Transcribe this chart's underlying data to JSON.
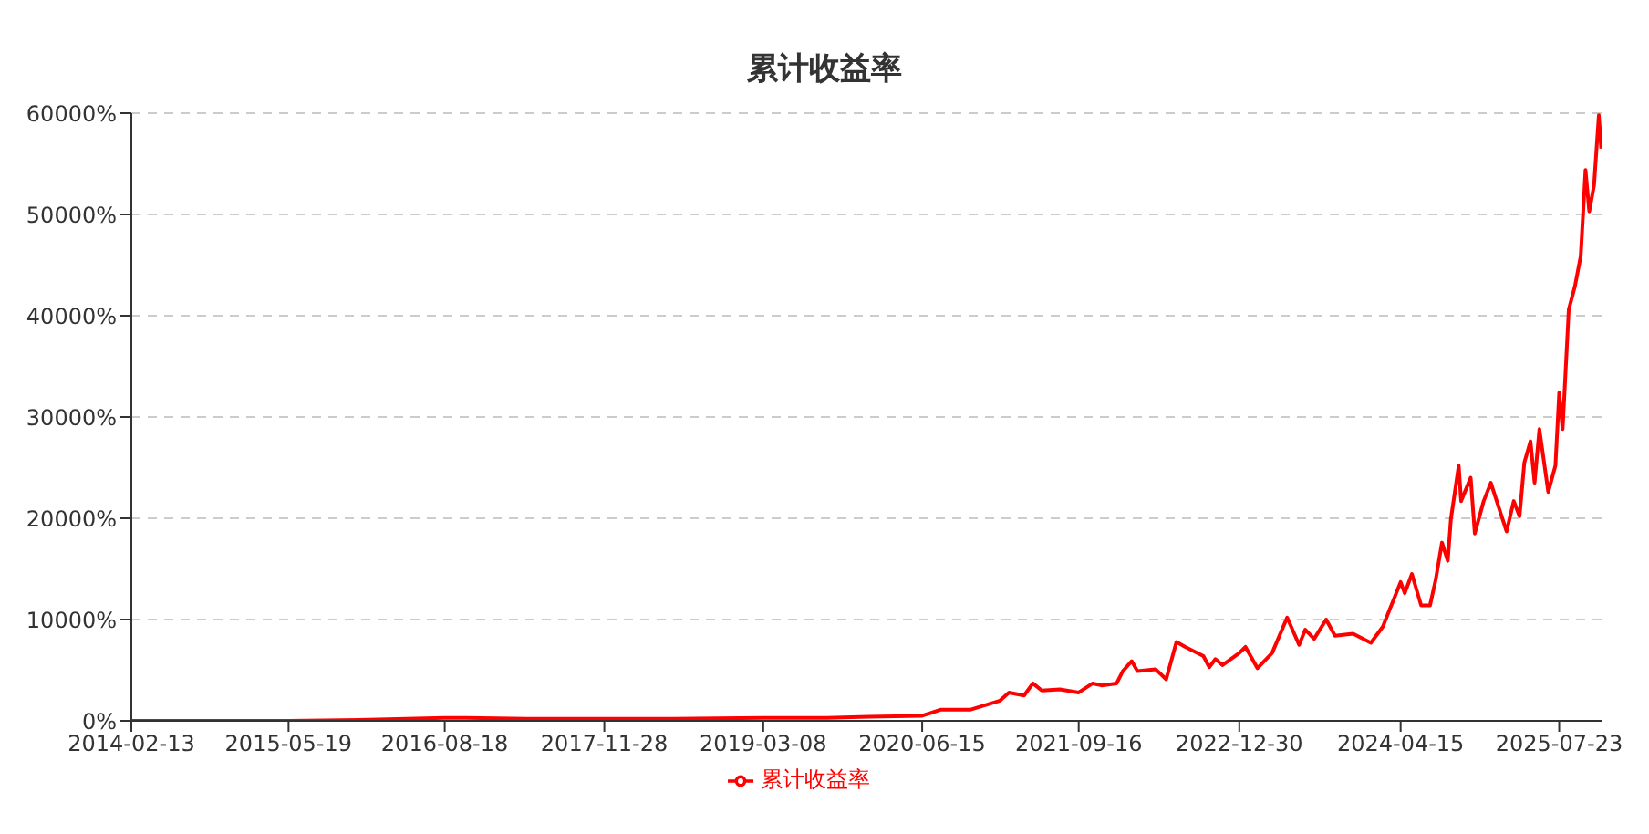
{
  "chart_data": {
    "type": "line",
    "title": "累计收益率",
    "x": [
      "2014-02-13",
      "2014-08-15",
      "2015-05-19",
      "2015-12-10",
      "2016-08-18",
      "2016-10-20",
      "2017-04-15",
      "2017-11-28",
      "2018-06-15",
      "2019-03-08",
      "2019-09-10",
      "2020-01-10",
      "2020-06-15",
      "2020-08-07",
      "2020-11-02",
      "2021-01-29",
      "2021-02-24",
      "2021-04-09",
      "2021-05-05",
      "2021-05-31",
      "2021-07-23",
      "2021-09-16",
      "2021-10-27",
      "2021-11-22",
      "2022-01-05",
      "2022-01-23",
      "2022-02-18",
      "2022-03-07",
      "2022-04-29",
      "2022-05-30",
      "2022-06-29",
      "2022-07-25",
      "2022-09-16",
      "2022-10-03",
      "2022-10-21",
      "2022-11-11",
      "2022-12-30",
      "2023-01-17",
      "2023-02-21",
      "2023-04-05",
      "2023-05-19",
      "2023-06-23",
      "2023-07-11",
      "2023-08-06",
      "2023-09-10",
      "2023-10-06",
      "2023-11-28",
      "2024-01-19",
      "2024-02-23",
      "2024-04-15",
      "2024-04-27",
      "2024-05-18",
      "2024-06-14",
      "2024-07-10",
      "2024-07-27",
      "2024-08-14",
      "2024-08-31",
      "2024-09-09",
      "2024-10-02",
      "2024-10-09",
      "2024-11-06",
      "2024-11-18",
      "2024-12-14",
      "2025-01-04",
      "2025-01-27",
      "2025-02-19",
      "2025-03-12",
      "2025-03-29",
      "2025-04-12",
      "2025-04-30",
      "2025-05-12",
      "2025-05-26",
      "2025-06-21",
      "2025-07-12",
      "2025-07-23",
      "2025-08-02",
      "2025-08-20",
      "2025-09-07",
      "2025-09-24",
      "2025-10-08",
      "2025-10-19",
      "2025-11-02",
      "2025-11-16",
      "2025-11-23"
    ],
    "series": [
      {
        "name": "累计收益率",
        "color": "#ff0000",
        "values": [
          0,
          0,
          0,
          100,
          300,
          300,
          200,
          200,
          200,
          300,
          300,
          400,
          500,
          1100,
          1100,
          2000,
          2800,
          2500,
          3700,
          3000,
          3100,
          2800,
          3700,
          3500,
          3700,
          4900,
          5900,
          4900,
          5100,
          4100,
          7800,
          7300,
          6400,
          5300,
          6100,
          5500,
          6700,
          7300,
          5200,
          6700,
          10200,
          7500,
          9000,
          8100,
          10000,
          8400,
          8600,
          7700,
          9300,
          13700,
          12600,
          14500,
          11400,
          11400,
          14000,
          17600,
          15800,
          19900,
          25200,
          21700,
          24000,
          18500,
          21700,
          23500,
          21100,
          18700,
          21700,
          20200,
          25500,
          27600,
          23500,
          28800,
          22600,
          25200,
          32400,
          28800,
          40600,
          42900,
          45900,
          54400,
          50300,
          52900,
          59800,
          56500
        ]
      }
    ],
    "xlim": [
      "2014-02-13",
      "2025-11-24"
    ],
    "xticks": [
      "2014-02-13",
      "2015-05-19",
      "2016-08-18",
      "2017-11-28",
      "2019-03-08",
      "2020-06-15",
      "2021-09-16",
      "2022-12-30",
      "2024-04-15",
      "2025-07-23"
    ],
    "ylim": [
      0,
      60000
    ],
    "yticks": [
      {
        "value": 0,
        "label": "0%"
      },
      {
        "value": 10000,
        "label": "10000%"
      },
      {
        "value": 20000,
        "label": "20000%"
      },
      {
        "value": 30000,
        "label": "30000%"
      },
      {
        "value": 40000,
        "label": "40000%"
      },
      {
        "value": 50000,
        "label": "50000%"
      },
      {
        "value": 60000,
        "label": "60000%"
      }
    ],
    "grid": "y",
    "legend": "bottom",
    "line_style": "solid"
  }
}
